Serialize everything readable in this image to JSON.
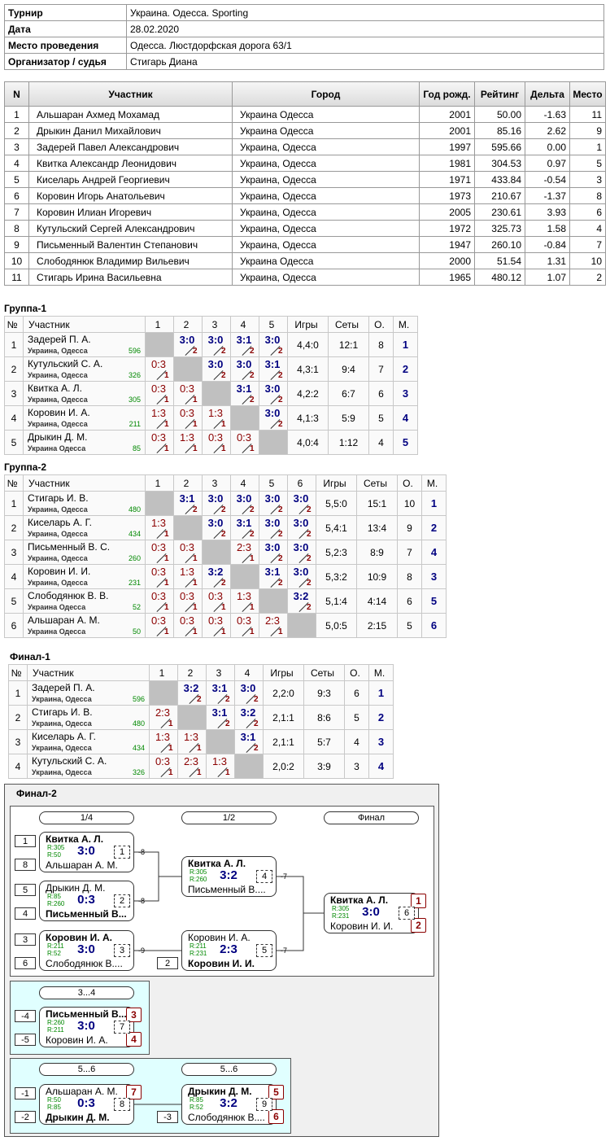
{
  "info": [
    {
      "label": "Турнир",
      "value": "Украина. Одесса. Sporting"
    },
    {
      "label": "Дата",
      "value": "28.02.2020"
    },
    {
      "label": "Место проведения",
      "value": "Одесса. Люстдорфская дорога 63/1"
    },
    {
      "label": "Организатор / судья",
      "value": "Стигарь Диана"
    }
  ],
  "participants": {
    "headers": [
      "N",
      "Участник",
      "Город",
      "Год рожд.",
      "Рейтинг",
      "Дельта",
      "Место"
    ],
    "rows": [
      [
        "1",
        "Альшаран Ахмед Мохамад",
        "Украина Одесса",
        "2001",
        "50.00",
        "-1.63",
        "11"
      ],
      [
        "2",
        "Дрыкин Данил Михайлович",
        "Украина Одесса",
        "2001",
        "85.16",
        "2.62",
        "9"
      ],
      [
        "3",
        "Задерей Павел Александрович",
        "Украина, Одесса",
        "1997",
        "595.66",
        "0.00",
        "1"
      ],
      [
        "4",
        "Квитка Александр Леонидович",
        "Украина, Одесса",
        "1981",
        "304.53",
        "0.97",
        "5"
      ],
      [
        "5",
        "Киселарь Андрей Георгиевич",
        "Украина, Одесса",
        "1971",
        "433.84",
        "-0.54",
        "3"
      ],
      [
        "6",
        "Коровин Игорь Анатольевич",
        "Украина, Одесса",
        "1973",
        "210.67",
        "-1.37",
        "8"
      ],
      [
        "7",
        "Коровин Илиан Игоревич",
        "Украина, Одесса",
        "2005",
        "230.61",
        "3.93",
        "6"
      ],
      [
        "8",
        "Кутульский Сергей Александрович",
        "Украина, Одесса",
        "1972",
        "325.73",
        "1.58",
        "4"
      ],
      [
        "9",
        "Письменный Валентин Степанович",
        "Украина, Одесса",
        "1947",
        "260.10",
        "-0.84",
        "7"
      ],
      [
        "10",
        "Слободянюк Владимир Вильевич",
        "Украина Одесса",
        "2000",
        "51.54",
        "1.31",
        "10"
      ],
      [
        "11",
        "Стигарь Ирина Васильевна",
        "Украина, Одесса",
        "1965",
        "480.12",
        "1.07",
        "2"
      ]
    ]
  },
  "groups": [
    {
      "title": "Группа-1",
      "headers": [
        "№",
        "Участник",
        "1",
        "2",
        "3",
        "4",
        "5",
        "Игры",
        "Сеты",
        "О.",
        "М."
      ],
      "rows": [
        {
          "n": "1",
          "name": "Задерей П. А.",
          "city": "Украина, Одесса",
          "rating": "596",
          "results": [
            null,
            {
              "score": "3:0",
              "points": "2"
            },
            {
              "score": "3:0",
              "points": "2"
            },
            {
              "score": "3:1",
              "points": "2"
            },
            {
              "score": "3:0",
              "points": "2"
            }
          ],
          "games": "4,4:0",
          "sets": "12:1",
          "points": "8",
          "place": "1"
        },
        {
          "n": "2",
          "name": "Кутульский С. А.",
          "city": "Украина, Одесса",
          "rating": "326",
          "results": [
            {
              "score": "0:3",
              "points": "1"
            },
            null,
            {
              "score": "3:0",
              "points": "2"
            },
            {
              "score": "3:0",
              "points": "2"
            },
            {
              "score": "3:1",
              "points": "2"
            }
          ],
          "games": "4,3:1",
          "sets": "9:4",
          "points": "7",
          "place": "2"
        },
        {
          "n": "3",
          "name": "Квитка А. Л.",
          "city": "Украина, Одесса",
          "rating": "305",
          "results": [
            {
              "score": "0:3",
              "points": "1"
            },
            {
              "score": "0:3",
              "points": "1"
            },
            null,
            {
              "score": "3:1",
              "points": "2"
            },
            {
              "score": "3:0",
              "points": "2"
            }
          ],
          "games": "4,2:2",
          "sets": "6:7",
          "points": "6",
          "place": "3"
        },
        {
          "n": "4",
          "name": "Коровин И. А.",
          "city": "Украина, Одесса",
          "rating": "211",
          "results": [
            {
              "score": "1:3",
              "points": "1"
            },
            {
              "score": "0:3",
              "points": "1"
            },
            {
              "score": "1:3",
              "points": "1"
            },
            null,
            {
              "score": "3:0",
              "points": "2"
            }
          ],
          "games": "4,1:3",
          "sets": "5:9",
          "points": "5",
          "place": "4"
        },
        {
          "n": "5",
          "name": "Дрыкин Д. М.",
          "city": "Украина Одесса",
          "rating": "85",
          "results": [
            {
              "score": "0:3",
              "points": "1"
            },
            {
              "score": "1:3",
              "points": "1"
            },
            {
              "score": "0:3",
              "points": "1"
            },
            {
              "score": "0:3",
              "points": "1"
            },
            null
          ],
          "games": "4,0:4",
          "sets": "1:12",
          "points": "4",
          "place": "5"
        }
      ]
    },
    {
      "title": "Группа-2",
      "headers": [
        "№",
        "Участник",
        "1",
        "2",
        "3",
        "4",
        "5",
        "6",
        "Игры",
        "Сеты",
        "О.",
        "М."
      ],
      "rows": [
        {
          "n": "1",
          "name": "Стигарь И. В.",
          "city": "Украина, Одесса",
          "rating": "480",
          "results": [
            null,
            {
              "score": "3:1",
              "points": "2"
            },
            {
              "score": "3:0",
              "points": "2"
            },
            {
              "score": "3:0",
              "points": "2"
            },
            {
              "score": "3:0",
              "points": "2"
            },
            {
              "score": "3:0",
              "points": "2"
            }
          ],
          "games": "5,5:0",
          "sets": "15:1",
          "points": "10",
          "place": "1"
        },
        {
          "n": "2",
          "name": "Киселарь А. Г.",
          "city": "Украина, Одесса",
          "rating": "434",
          "results": [
            {
              "score": "1:3",
              "points": "1"
            },
            null,
            {
              "score": "3:0",
              "points": "2"
            },
            {
              "score": "3:1",
              "points": "2"
            },
            {
              "score": "3:0",
              "points": "2"
            },
            {
              "score": "3:0",
              "points": "2"
            }
          ],
          "games": "5,4:1",
          "sets": "13:4",
          "points": "9",
          "place": "2"
        },
        {
          "n": "3",
          "name": "Письменный В. С.",
          "city": "Украина, Одесса",
          "rating": "260",
          "results": [
            {
              "score": "0:3",
              "points": "1"
            },
            {
              "score": "0:3",
              "points": "1"
            },
            null,
            {
              "score": "2:3",
              "points": "1"
            },
            {
              "score": "3:0",
              "points": "2"
            },
            {
              "score": "3:0",
              "points": "2"
            }
          ],
          "games": "5,2:3",
          "sets": "8:9",
          "points": "7",
          "place": "4"
        },
        {
          "n": "4",
          "name": "Коровин И. И.",
          "city": "Украина, Одесса",
          "rating": "231",
          "results": [
            {
              "score": "0:3",
              "points": "1"
            },
            {
              "score": "1:3",
              "points": "1"
            },
            {
              "score": "3:2",
              "points": "2"
            },
            null,
            {
              "score": "3:1",
              "points": "2"
            },
            {
              "score": "3:0",
              "points": "2"
            }
          ],
          "games": "5,3:2",
          "sets": "10:9",
          "points": "8",
          "place": "3"
        },
        {
          "n": "5",
          "name": "Слободянюк В. В.",
          "city": "Украина Одесса",
          "rating": "52",
          "results": [
            {
              "score": "0:3",
              "points": "1"
            },
            {
              "score": "0:3",
              "points": "1"
            },
            {
              "score": "0:3",
              "points": "1"
            },
            {
              "score": "1:3",
              "points": "1"
            },
            null,
            {
              "score": "3:2",
              "points": "2"
            }
          ],
          "games": "5,1:4",
          "sets": "4:14",
          "points": "6",
          "place": "5"
        },
        {
          "n": "6",
          "name": "Альшаран А. М.",
          "city": "Украина Одесса",
          "rating": "50",
          "results": [
            {
              "score": "0:3",
              "points": "1"
            },
            {
              "score": "0:3",
              "points": "1"
            },
            {
              "score": "0:3",
              "points": "1"
            },
            {
              "score": "0:3",
              "points": "1"
            },
            {
              "score": "2:3",
              "points": "1"
            },
            null
          ],
          "games": "5,0:5",
          "sets": "2:15",
          "points": "5",
          "place": "6"
        }
      ]
    },
    {
      "title": "Финал-1",
      "headers": [
        "№",
        "Участник",
        "1",
        "2",
        "3",
        "4",
        "Игры",
        "Сеты",
        "О.",
        "М."
      ],
      "rows": [
        {
          "n": "1",
          "name": "Задерей П. А.",
          "city": "Украина, Одесса",
          "rating": "596",
          "results": [
            null,
            {
              "score": "3:2",
              "points": "2"
            },
            {
              "score": "3:1",
              "points": "2"
            },
            {
              "score": "3:0",
              "points": "2"
            }
          ],
          "games": "2,2:0",
          "sets": "9:3",
          "points": "6",
          "place": "1"
        },
        {
          "n": "2",
          "name": "Стигарь И. В.",
          "city": "Украина, Одесса",
          "rating": "480",
          "results": [
            {
              "score": "2:3",
              "points": "1"
            },
            null,
            {
              "score": "3:1",
              "points": "2"
            },
            {
              "score": "3:2",
              "points": "2"
            }
          ],
          "games": "2,1:1",
          "sets": "8:6",
          "points": "5",
          "place": "2"
        },
        {
          "n": "3",
          "name": "Киселарь А. Г.",
          "city": "Украина, Одесса",
          "rating": "434",
          "results": [
            {
              "score": "1:3",
              "points": "1"
            },
            {
              "score": "1:3",
              "points": "1"
            },
            null,
            {
              "score": "3:1",
              "points": "2"
            }
          ],
          "games": "2,1:1",
          "sets": "5:7",
          "points": "4",
          "place": "3"
        },
        {
          "n": "4",
          "name": "Кутульский С. А.",
          "city": "Украина, Одесса",
          "rating": "326",
          "results": [
            {
              "score": "0:3",
              "points": "1"
            },
            {
              "score": "2:3",
              "points": "1"
            },
            {
              "score": "1:3",
              "points": "1"
            },
            null
          ],
          "games": "2,0:2",
          "sets": "3:9",
          "points": "3",
          "place": "4"
        }
      ]
    }
  ],
  "final2": {
    "title": "Финал-2",
    "sections": [
      {
        "rounds": [
          "1/4",
          "1/2",
          "Финал"
        ],
        "matches": [
          {
            "number": "1",
            "score": "3:0",
            "top": {
              "seed": "1",
              "name": "Квитка А. Л.",
              "rating": "R:305"
            },
            "bottom": {
              "seed": "8",
              "name": "Альшаран А. М.",
              "rating": "R:50"
            },
            "loser_to": "-8"
          },
          {
            "number": "2",
            "score": "0:3",
            "top": {
              "seed": "5",
              "name": "Дрыкин Д. М.",
              "rating": "R:85"
            },
            "bottom": {
              "seed": "4",
              "name": "Письменный В....",
              "rating": "R:260"
            },
            "loser_to": "-8"
          },
          {
            "number": "3",
            "score": "3:0",
            "top": {
              "seed": "3",
              "name": "Коровин И. А.",
              "rating": "R:211"
            },
            "bottom": {
              "seed": "6",
              "name": "Слободянюк В....",
              "rating": "R:52"
            },
            "loser_to": "-9"
          },
          {
            "number": "4",
            "score": "3:2",
            "top": {
              "name": "Квитка А. Л.",
              "rating": "R:305"
            },
            "bottom": {
              "name": "Письменный В....",
              "rating": "R:260"
            },
            "loser_to": "-7"
          },
          {
            "number": "5",
            "score": "2:3",
            "top": {
              "name": "Коровин И. А.",
              "rating": "R:211"
            },
            "bottom": {
              "seed": "2",
              "name": "Коровин И. И.",
              "rating": "R:231"
            },
            "loser_to": "-7"
          },
          {
            "number": "6",
            "score": "3:0",
            "top": {
              "name": "Квитка А. Л.",
              "rating": "R:305",
              "place": "1"
            },
            "bottom": {
              "name": "Коровин И. И.",
              "rating": "R:231",
              "place": "2"
            }
          }
        ]
      },
      {
        "rounds": [
          "3...4"
        ],
        "matches": [
          {
            "number": "7",
            "score": "3:0",
            "top": {
              "seed": "-4",
              "name": "Письменный В....",
              "rating": "R:260",
              "place": "3"
            },
            "bottom": {
              "seed": "-5",
              "name": "Коровин И. А.",
              "rating": "R:211",
              "place": "4"
            }
          }
        ]
      },
      {
        "rounds": [
          "5...6",
          "5...6"
        ],
        "matches": [
          {
            "number": "8",
            "score": "0:3",
            "top": {
              "seed": "-1",
              "name": "Альшаран А. М.",
              "rating": "R:50",
              "place": "7"
            },
            "bottom": {
              "seed": "-2",
              "name": "Дрыкин Д. М.",
              "rating": "R:85"
            }
          },
          {
            "number": "9",
            "score": "3:2",
            "top": {
              "name": "Дрыкин Д. М.",
              "rating": "R:85",
              "place": "5"
            },
            "bottom": {
              "seed": "-3",
              "name": "Слободянюк В....",
              "rating": "R:52",
              "place": "6"
            }
          }
        ]
      }
    ]
  }
}
